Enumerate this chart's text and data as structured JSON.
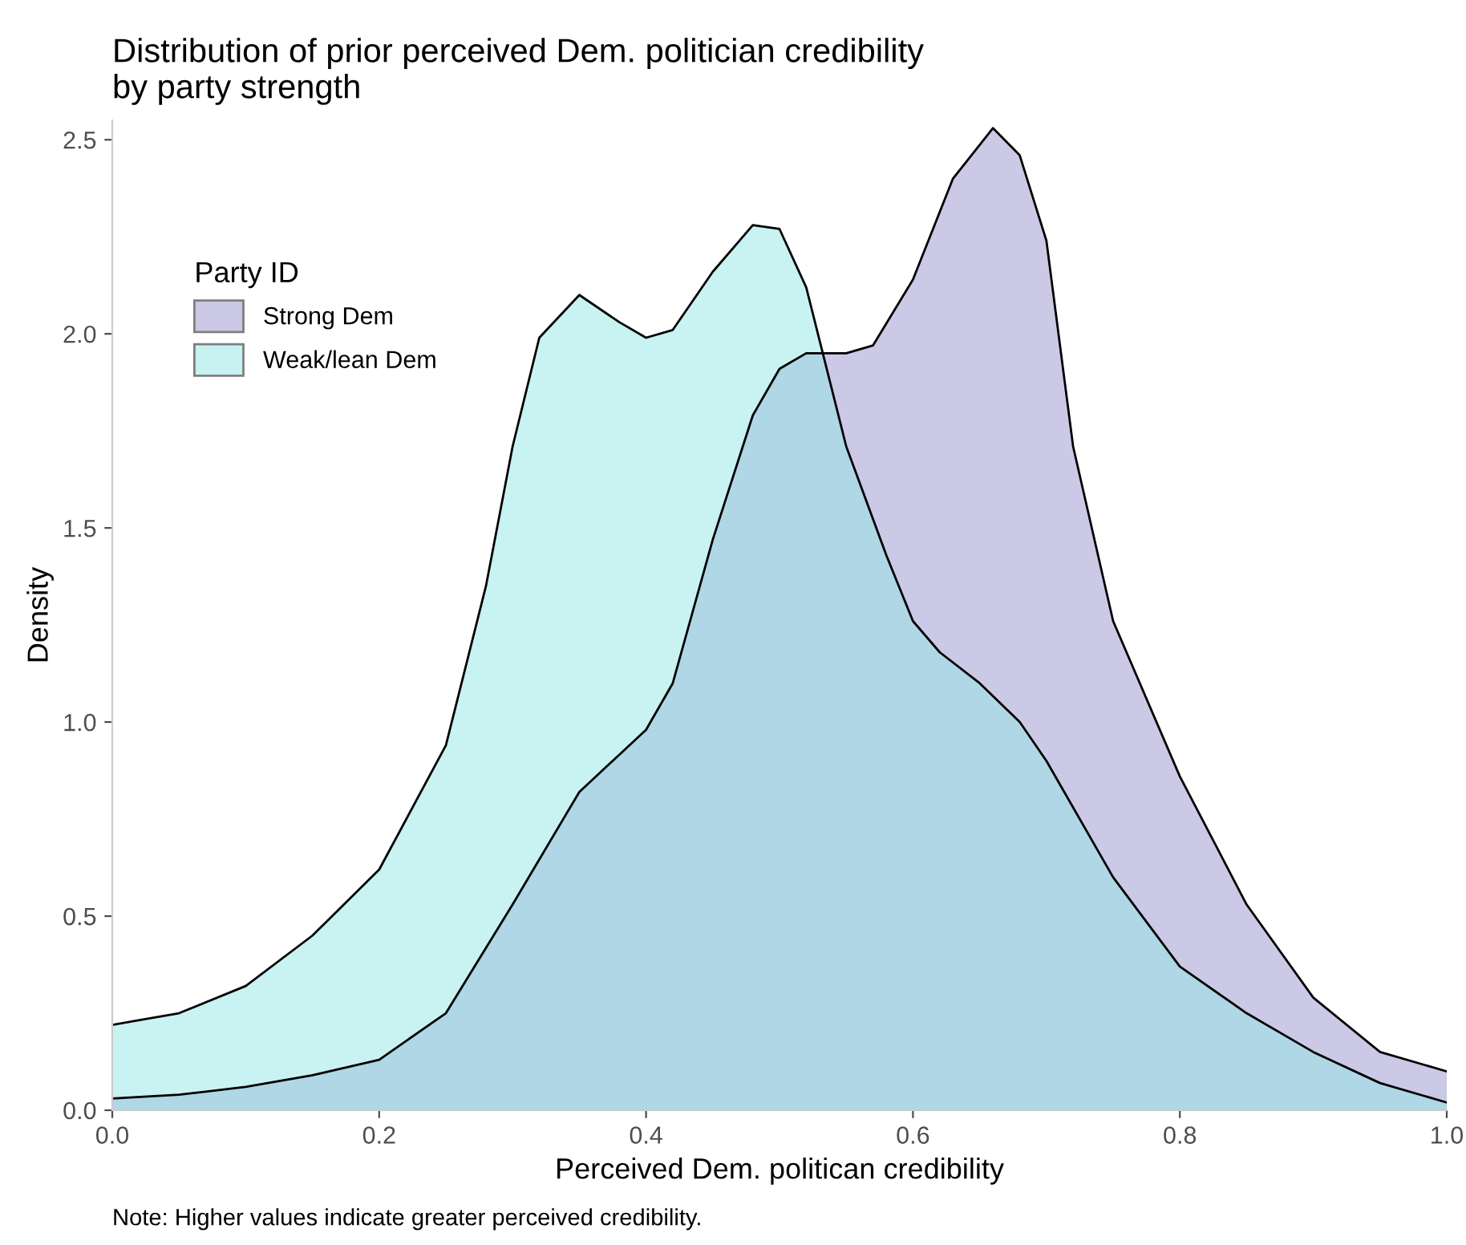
{
  "chart_data": {
    "type": "area",
    "title": "Distribution of prior perceived Dem. politician credibility\nby party strength",
    "xlabel": "Perceived Dem. politican credibility",
    "ylabel": "Density",
    "legend_title": "Party ID",
    "legend": "top left",
    "grid": false,
    "xlim": [
      0,
      1
    ],
    "xticks": [
      {
        "value": 0,
        "label": "0.0"
      },
      0.2,
      0.4,
      0.6,
      0.8,
      {
        "value": 1,
        "label": "1.0"
      }
    ],
    "ylim": [
      0,
      2.55
    ],
    "yticks": [
      {
        "value": 0,
        "label": "0.0"
      },
      0.5,
      {
        "value": 1,
        "label": "1.0"
      },
      1.5,
      {
        "value": 2,
        "label": "2.0"
      },
      2.5
    ],
    "annotations": [
      "Note: Higher values indicate greater perceived credibility."
    ],
    "series": [
      {
        "name": "Strong Dem",
        "color": "#cbc9e5",
        "x": [
          0,
          0.05,
          0.1,
          0.15,
          0.2,
          0.25,
          0.3,
          0.35,
          0.4,
          0.42,
          0.45,
          0.48,
          0.5,
          0.52,
          0.55,
          0.57,
          0.6,
          0.63,
          0.66,
          0.68,
          0.7,
          0.72,
          0.75,
          0.8,
          0.85,
          0.9,
          0.95,
          1.0
        ],
        "values": [
          0.03,
          0.04,
          0.06,
          0.09,
          0.13,
          0.25,
          0.53,
          0.82,
          0.98,
          1.1,
          1.47,
          1.79,
          1.91,
          1.95,
          1.95,
          1.97,
          2.14,
          2.4,
          2.53,
          2.46,
          2.24,
          1.71,
          1.26,
          0.86,
          0.53,
          0.29,
          0.15,
          0.1
        ]
      },
      {
        "name": "Weak/lean Dem",
        "color": "#c9f2f2",
        "x": [
          0,
          0.05,
          0.1,
          0.15,
          0.2,
          0.25,
          0.28,
          0.3,
          0.32,
          0.35,
          0.38,
          0.4,
          0.42,
          0.45,
          0.48,
          0.5,
          0.52,
          0.55,
          0.58,
          0.6,
          0.62,
          0.65,
          0.68,
          0.7,
          0.75,
          0.8,
          0.85,
          0.9,
          0.95,
          1.0
        ],
        "values": [
          0.22,
          0.25,
          0.32,
          0.45,
          0.62,
          0.94,
          1.35,
          1.71,
          1.99,
          2.1,
          2.03,
          1.99,
          2.01,
          2.16,
          2.28,
          2.27,
          2.12,
          1.71,
          1.43,
          1.26,
          1.18,
          1.1,
          1.0,
          0.9,
          0.6,
          0.37,
          0.25,
          0.15,
          0.07,
          0.02
        ]
      }
    ]
  }
}
